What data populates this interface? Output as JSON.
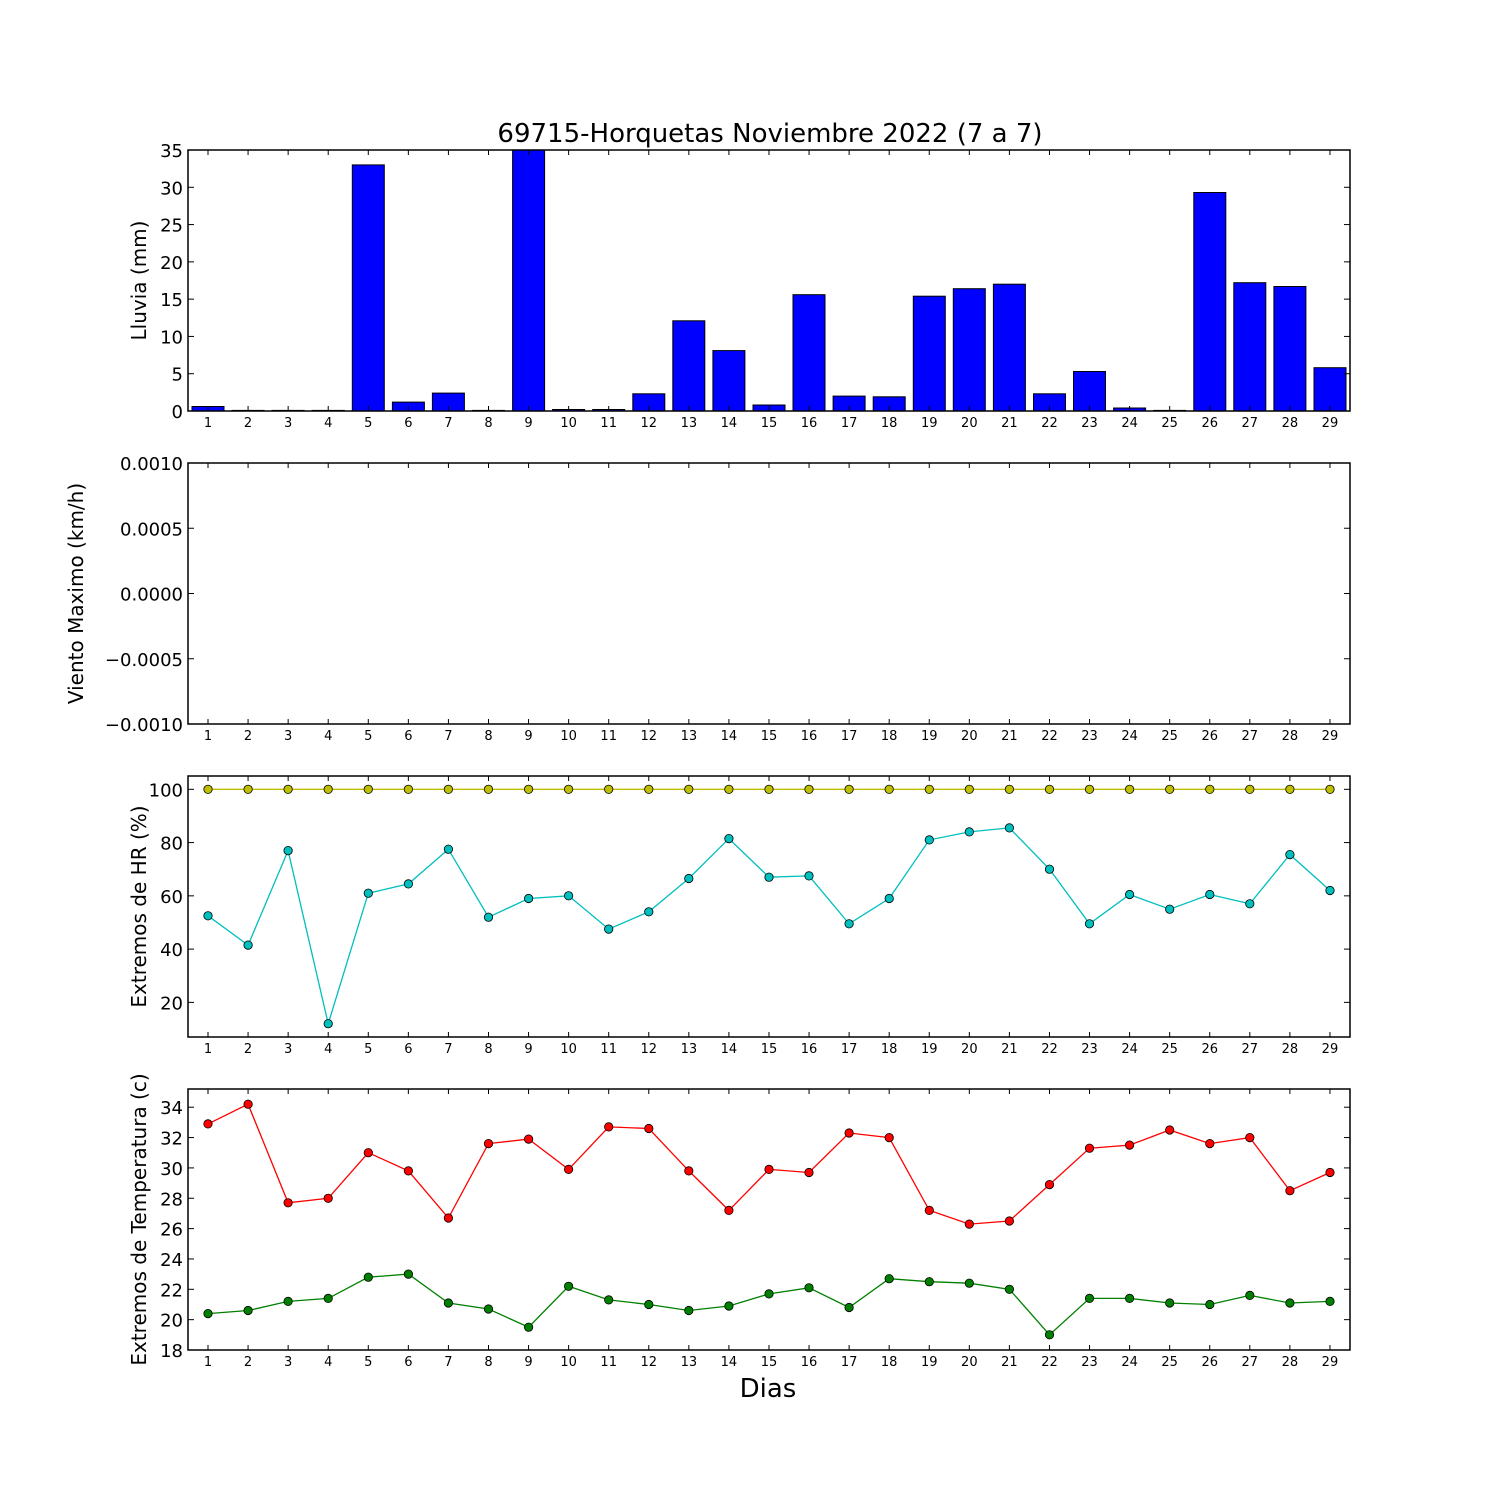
{
  "figure": {
    "title": "69715-Horquetas Noviembre 2022  (7 a 7)",
    "xlabel": "Dias"
  },
  "chart_data": [
    {
      "type": "bar",
      "ylabel": "Lluvia (mm)",
      "ylim": [
        0,
        35
      ],
      "yticks": [
        0,
        5,
        10,
        15,
        20,
        25,
        30,
        35
      ],
      "ytick_labels": [
        "0",
        "5",
        "10",
        "15",
        "20",
        "25",
        "30",
        "35"
      ],
      "categories": [
        "1",
        "2",
        "3",
        "4",
        "5",
        "6",
        "7",
        "8",
        "9",
        "10",
        "11",
        "12",
        "13",
        "14",
        "15",
        "16",
        "17",
        "18",
        "19",
        "20",
        "21",
        "22",
        "23",
        "24",
        "25",
        "26",
        "27",
        "28",
        "29"
      ],
      "values": [
        0.6,
        0,
        0,
        0,
        33.0,
        1.2,
        2.4,
        0,
        35.2,
        0.2,
        0.2,
        2.3,
        12.1,
        8.1,
        0.8,
        15.6,
        2.0,
        1.9,
        15.4,
        16.4,
        17.0,
        2.3,
        5.3,
        0.4,
        0,
        29.3,
        17.2,
        16.7,
        5.8
      ],
      "bar_color": "#0000ff",
      "grid": false
    },
    {
      "type": "line",
      "ylabel": "Viento Maximo (km/h)",
      "ylim": [
        -0.001,
        0.001
      ],
      "yticks": [
        -0.001,
        -0.0005,
        0,
        0.0005,
        0.001
      ],
      "ytick_labels": [
        "−0.0010",
        "−0.0005",
        "0.0000",
        "0.0005",
        "0.0010"
      ],
      "categories": [
        "1",
        "2",
        "3",
        "4",
        "5",
        "6",
        "7",
        "8",
        "9",
        "10",
        "11",
        "12",
        "13",
        "14",
        "15",
        "16",
        "17",
        "18",
        "19",
        "20",
        "21",
        "22",
        "23",
        "24",
        "25",
        "26",
        "27",
        "28",
        "29"
      ],
      "series": [],
      "grid": false
    },
    {
      "type": "line",
      "ylabel": "Extremos de HR (%)",
      "ylim": [
        7,
        105
      ],
      "yticks": [
        20,
        40,
        60,
        80,
        100
      ],
      "ytick_labels": [
        "20",
        "40",
        "60",
        "80",
        "100"
      ],
      "categories": [
        "1",
        "2",
        "3",
        "4",
        "5",
        "6",
        "7",
        "8",
        "9",
        "10",
        "11",
        "12",
        "13",
        "14",
        "15",
        "16",
        "17",
        "18",
        "19",
        "20",
        "21",
        "22",
        "23",
        "24",
        "25",
        "26",
        "27",
        "28",
        "29"
      ],
      "series": [
        {
          "color": "#bfbf00",
          "values": [
            100,
            100,
            100,
            100,
            100,
            100,
            100,
            100,
            100,
            100,
            100,
            100,
            100,
            100,
            100,
            100,
            100,
            100,
            100,
            100,
            100,
            100,
            100,
            100,
            100,
            100,
            100,
            100,
            100
          ]
        },
        {
          "color": "#00bfbf",
          "values": [
            52.5,
            41.5,
            77.0,
            12.0,
            61.0,
            64.5,
            77.5,
            52.0,
            59.0,
            60.0,
            47.5,
            54.0,
            66.5,
            81.5,
            67.0,
            67.5,
            49.5,
            59.0,
            81.0,
            84.0,
            85.5,
            70.0,
            49.5,
            60.5,
            55.0,
            60.5,
            57.0,
            75.5,
            62.0
          ]
        }
      ],
      "grid": false
    },
    {
      "type": "line",
      "ylabel": "Extremos de Temperatura (c)",
      "ylim": [
        18,
        35.2
      ],
      "yticks": [
        18,
        20,
        22,
        24,
        26,
        28,
        30,
        32,
        34
      ],
      "ytick_labels": [
        "18",
        "20",
        "22",
        "24",
        "26",
        "28",
        "30",
        "32",
        "34"
      ],
      "categories": [
        "1",
        "2",
        "3",
        "4",
        "5",
        "6",
        "7",
        "8",
        "9",
        "10",
        "11",
        "12",
        "13",
        "14",
        "15",
        "16",
        "17",
        "18",
        "19",
        "20",
        "21",
        "22",
        "23",
        "24",
        "25",
        "26",
        "27",
        "28",
        "29"
      ],
      "series": [
        {
          "color": "#ff0000",
          "values": [
            32.9,
            34.2,
            27.7,
            28.0,
            31.0,
            29.8,
            26.7,
            31.6,
            31.9,
            29.9,
            32.7,
            32.6,
            29.8,
            27.2,
            29.9,
            29.7,
            32.3,
            32.0,
            27.2,
            26.3,
            26.5,
            28.9,
            31.3,
            31.5,
            32.5,
            31.6,
            32.0,
            28.5,
            29.7
          ]
        },
        {
          "color": "#008000",
          "values": [
            20.4,
            20.6,
            21.2,
            21.4,
            22.8,
            23.0,
            21.1,
            20.7,
            19.5,
            22.2,
            21.3,
            21.0,
            20.6,
            20.9,
            21.7,
            22.1,
            20.8,
            22.7,
            22.5,
            22.4,
            22.0,
            19.0,
            21.4,
            21.4,
            21.1,
            21.0,
            21.6,
            21.1,
            21.2
          ]
        }
      ],
      "grid": false
    }
  ]
}
